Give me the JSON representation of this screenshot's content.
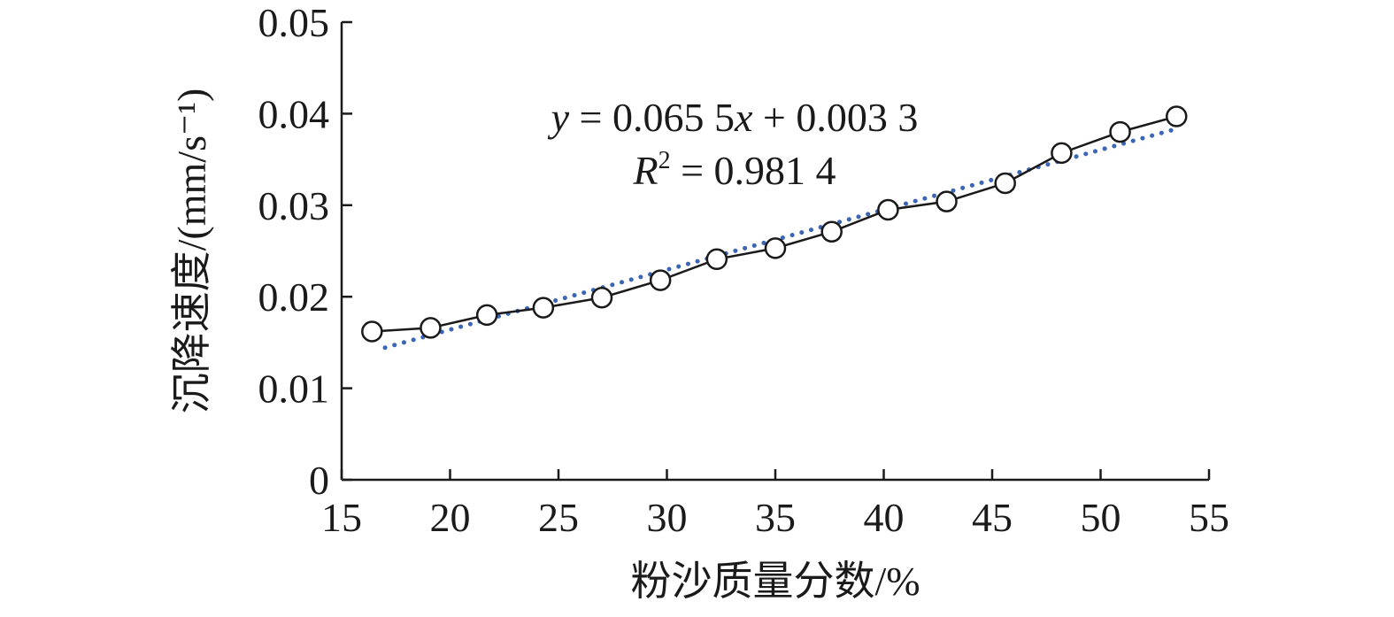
{
  "chart_data": {
    "type": "scatter",
    "xlabel": "粉沙质量分数/%",
    "ylabel": "沉降速度/(mm/s⁻¹)",
    "xlim": [
      15,
      55
    ],
    "ylim": [
      0,
      0.05
    ],
    "x_ticks": [
      "15",
      "20",
      "25",
      "30",
      "35",
      "40",
      "45",
      "50",
      "55"
    ],
    "y_ticks": [
      "0",
      "0.01",
      "0.02",
      "0.03",
      "0.04",
      "0.05"
    ],
    "x_tick_values": [
      15,
      20,
      25,
      30,
      35,
      40,
      45,
      50,
      55
    ],
    "y_tick_values": [
      0,
      0.01,
      0.02,
      0.03,
      0.04,
      0.05
    ],
    "grid": false,
    "series": [
      {
        "style": "line-with-open-circle-markers",
        "color": "#1a1a1a",
        "x": [
          16.4,
          19.1,
          21.7,
          24.3,
          27.0,
          29.7,
          32.3,
          35.0,
          37.6,
          40.2,
          42.9,
          45.6,
          48.2,
          50.9,
          53.5
        ],
        "y": [
          0.0162,
          0.0166,
          0.018,
          0.0188,
          0.0199,
          0.0218,
          0.0241,
          0.0253,
          0.0271,
          0.0295,
          0.0304,
          0.0324,
          0.0357,
          0.038,
          0.0397
        ]
      },
      {
        "style": "dotted-linear-trendline",
        "color": "#3a66b5",
        "slope": 0.0655,
        "intercept": 0.0033,
        "x_range": [
          17.0,
          53.3
        ]
      }
    ],
    "annotations": {
      "equation": [
        "y",
        " = 0.065 5",
        "x",
        " + 0.003 3"
      ],
      "r2_symbol": "R",
      "r2_exponent": "2",
      "r2_value": " = 0.981 4"
    }
  }
}
